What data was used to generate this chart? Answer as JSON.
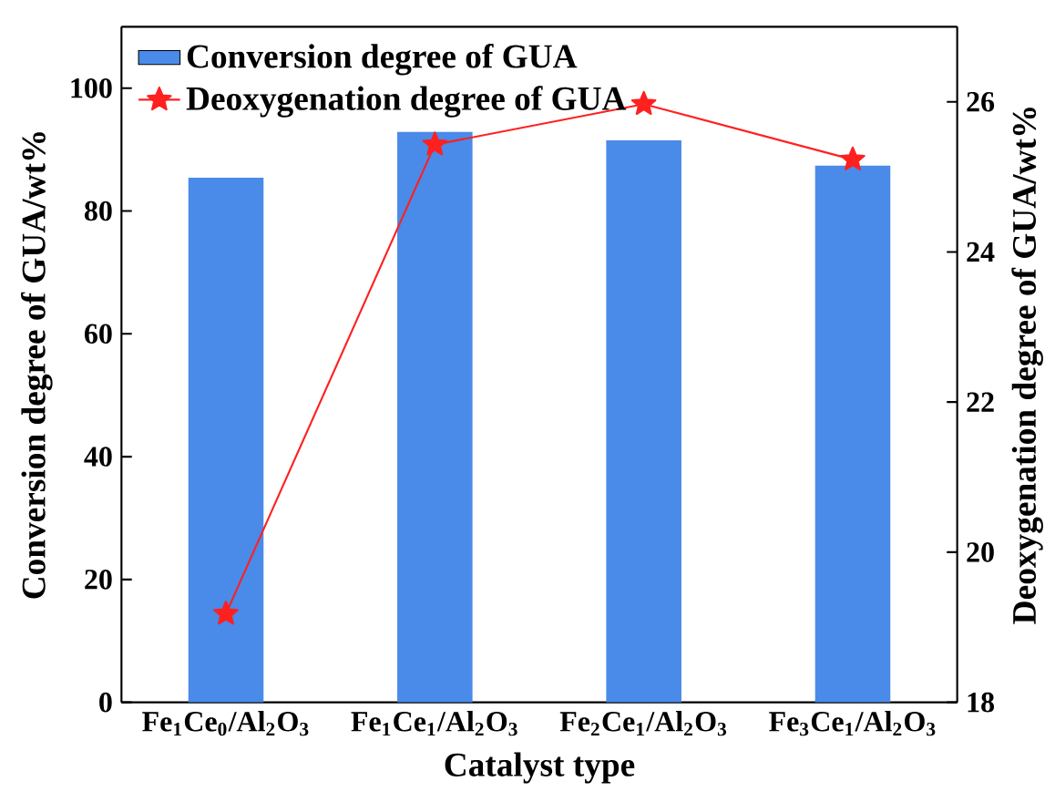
{
  "chart_data": {
    "type": "bar",
    "xlabel": "Catalyst type",
    "ylabel": "Conversion degree of GUA/wt%",
    "y2label": "Deoxygenation degree of GUA/wt%",
    "categories": [
      "Fe$_{1}$Ce$_{0}$/Al$_{2}$O$_{3}$",
      "Fe$_{1}$Ce$_{1}$/Al$_{2}$O$_{3}$",
      "Fe$_{2}$Ce$_{1}$/Al$_{2}$O$_{3}$",
      "Fe$_{3}$Ce$_{1}$/Al$_{2}$O$_{3}$"
    ],
    "series": [
      {
        "name": "Conversion degree of GUA",
        "color": "#4a8ae8",
        "values": [
          85.4,
          92.9,
          91.5,
          87.4
        ]
      },
      {
        "name": "Deoxygenation degree of GUA",
        "type": "line",
        "axis": "y2",
        "color": "#ff2020",
        "marker": "star",
        "values": [
          19.18,
          25.43,
          25.97,
          25.23
        ]
      }
    ],
    "ylim": [
      0,
      110
    ],
    "yticks": [
      0,
      20,
      40,
      60,
      80,
      100
    ],
    "y2lim": [
      18,
      27
    ],
    "y2ticks": [
      18,
      20,
      22,
      24,
      26
    ],
    "legend": "top left"
  }
}
